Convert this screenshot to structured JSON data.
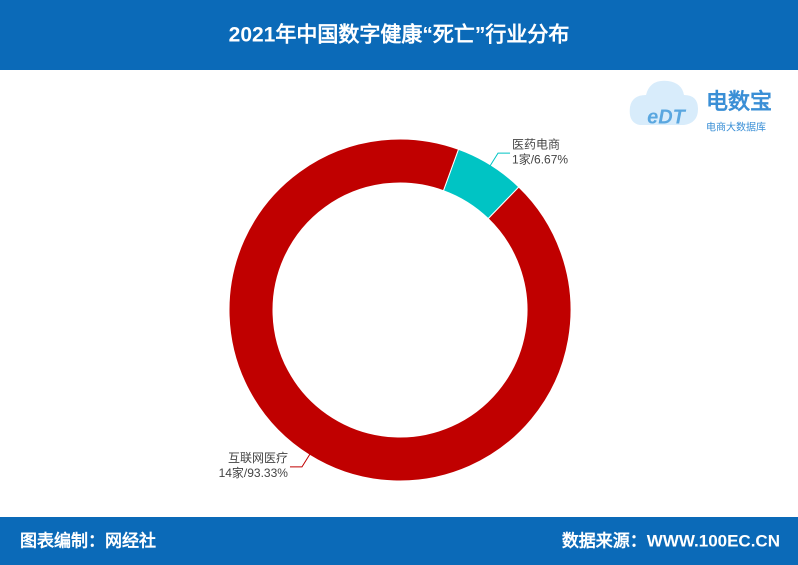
{
  "chart_data": {
    "type": "pie",
    "title": "2021年中国数字健康“死亡”行业分布",
    "categories": [
      "医药电商",
      "互联网医疗"
    ],
    "values": [
      1,
      14
    ],
    "value_labels": [
      "1家/6.67%",
      "14家/93.33%"
    ],
    "colors": [
      "#00c4c4",
      "#c00000"
    ],
    "donut": true
  },
  "logo": {
    "mark": "eDT",
    "name": "电数宝",
    "tagline": "电商大数据库"
  },
  "footer": {
    "left": "图表编制：网经社",
    "right": "数据来源：WWW.100EC.CN"
  }
}
